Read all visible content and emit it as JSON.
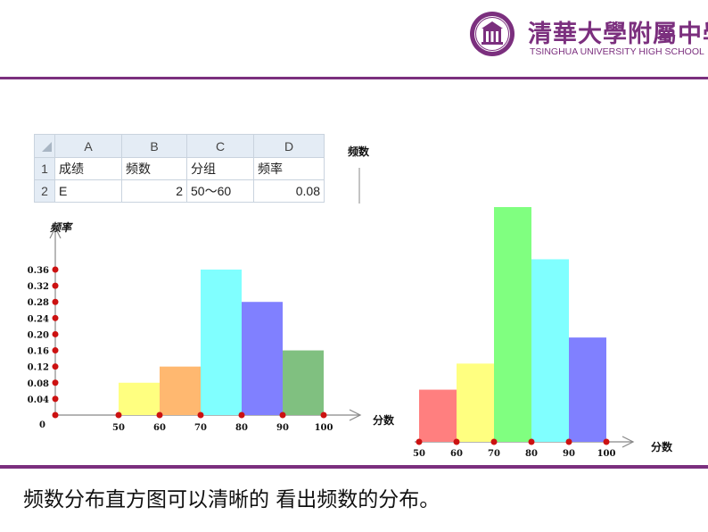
{
  "header": {
    "school_name_cn": "清華大學附屬中學",
    "school_name_en": "TSINGHUA UNIVERSITY HIGH SCHOOL",
    "logo_icon": "school-seal-icon",
    "accent_color": "#7b2f7e"
  },
  "spreadsheet": {
    "columns": [
      "A",
      "B",
      "C",
      "D"
    ],
    "rows": [
      {
        "row": "1",
        "cells": [
          "成绩",
          "频数",
          "分组",
          "频率"
        ]
      },
      {
        "row": "2",
        "cells": [
          "E",
          "2",
          "50～60",
          "0.08"
        ]
      }
    ]
  },
  "chart_data": [
    {
      "type": "bar",
      "ylabel": "频率",
      "xlabel": "分数",
      "x_ticks": [
        "50",
        "60",
        "70",
        "80",
        "90",
        "100"
      ],
      "y_ticks": [
        "0",
        "0.04",
        "0.08",
        "0.12",
        "0.16",
        "0.20",
        "0.24",
        "0.28",
        "0.32",
        "0.36"
      ],
      "ylim": [
        0,
        0.36
      ],
      "categories": [
        "50~60",
        "60~70",
        "70~80",
        "80~90",
        "90~100"
      ],
      "values": [
        0.08,
        0.12,
        0.36,
        0.28,
        0.16
      ],
      "colors": [
        "#ffff80",
        "#ffb870",
        "#80ffff",
        "#8080ff",
        "#80c080"
      ]
    },
    {
      "type": "bar",
      "ylabel": "频数",
      "xlabel": "分数",
      "x_ticks": [
        "50",
        "60",
        "70",
        "80",
        "90",
        "100"
      ],
      "categories": [
        "50~60",
        "60~70",
        "70~80",
        "80~90",
        "90~100"
      ],
      "values": [
        2,
        3,
        9,
        7,
        4
      ],
      "colors": [
        "#ff7f7f",
        "#ffff80",
        "#80ff80",
        "#80ffff",
        "#8080ff"
      ]
    }
  ],
  "caption": "频数分布直方图可以清晰的 看出频数的分布。"
}
